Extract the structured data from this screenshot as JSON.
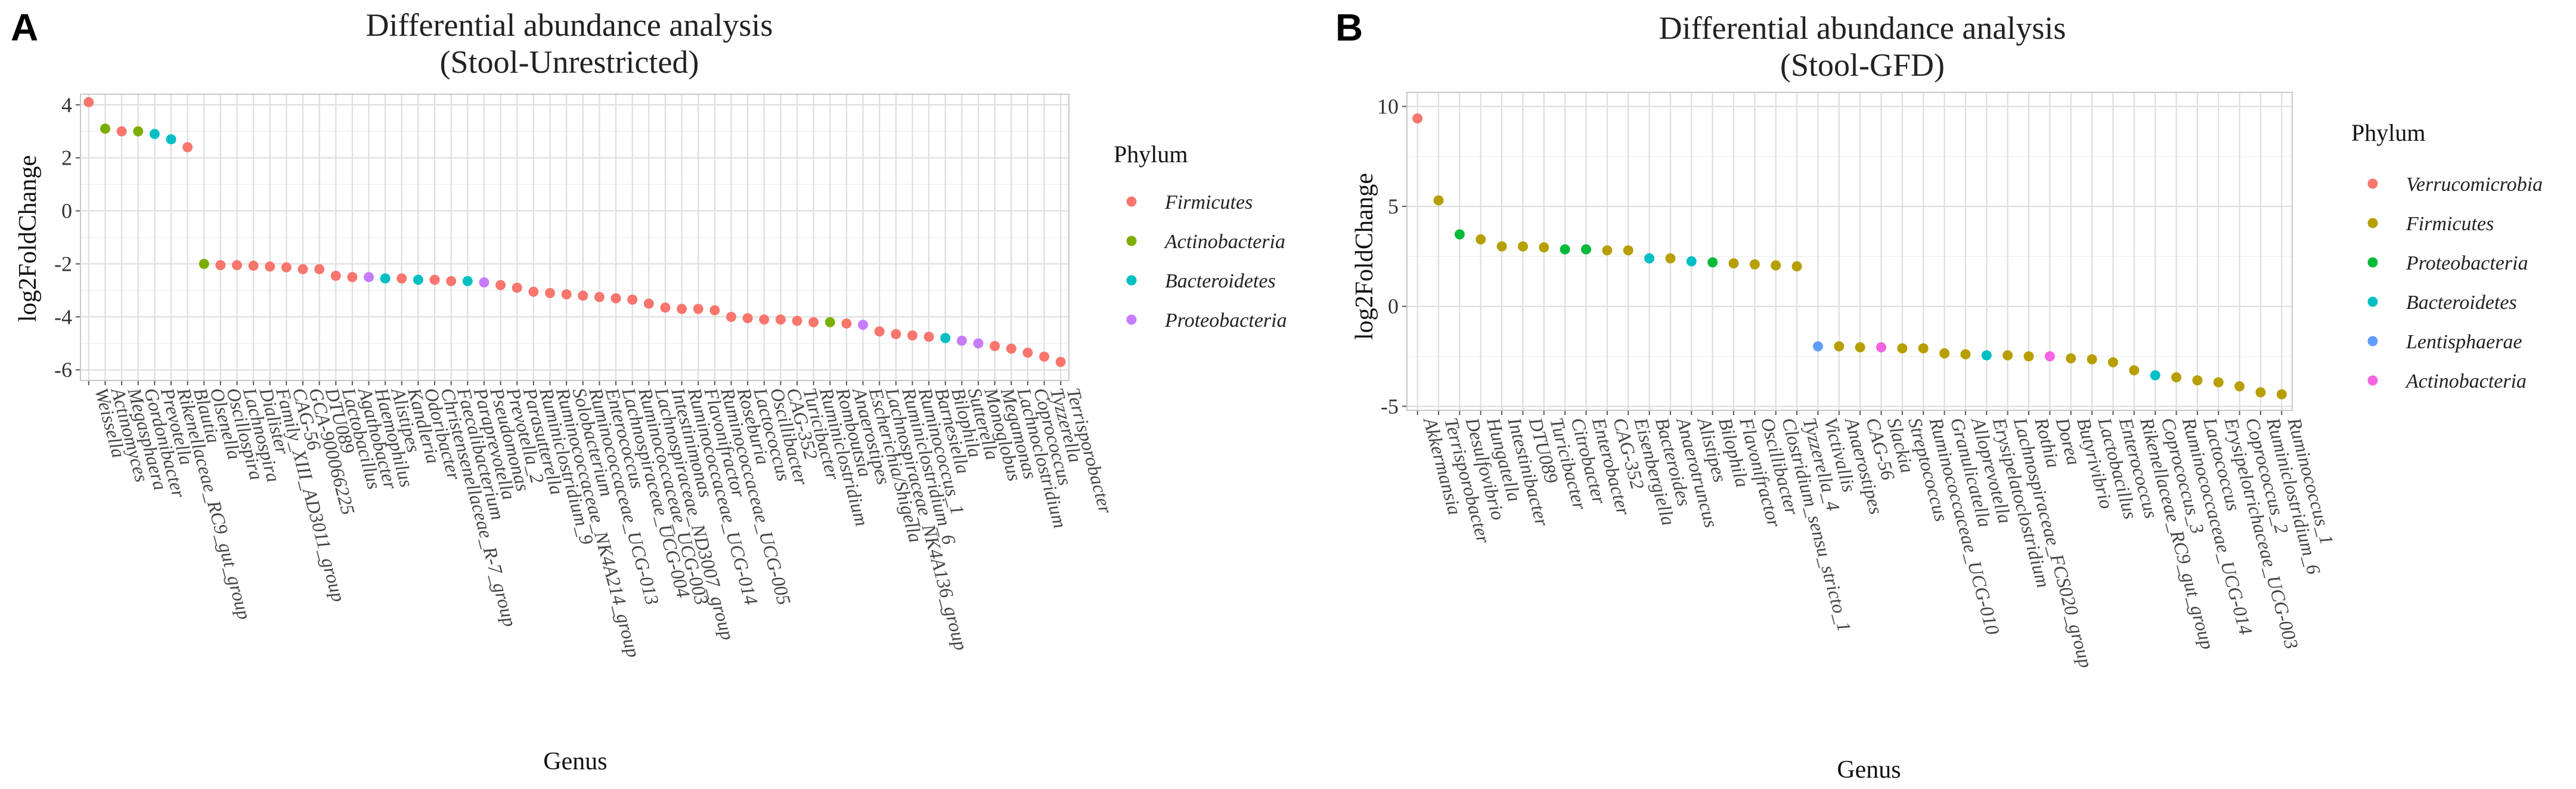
{
  "panels": [
    {
      "letter": "A",
      "title_line1": "Differential abundance analysis",
      "title_line2": "(Stool-Unrestricted)",
      "xlabel": "Genus",
      "ylabel": "log2FoldChange",
      "legend_title": "Phylum",
      "legend": [
        {
          "name": "Firmicutes",
          "color": "#F8766D"
        },
        {
          "name": "Actinobacteria",
          "color": "#7CAE00"
        },
        {
          "name": "Bacteroidetes",
          "color": "#00BFC4"
        },
        {
          "name": "Proteobacteria",
          "color": "#C77CFF"
        }
      ],
      "chart_data": {
        "type": "scatter",
        "ylim": [
          -6.4,
          4.4
        ],
        "yticks": [
          -6,
          -4,
          -2,
          0,
          2,
          4
        ],
        "points": [
          {
            "genus": "Weissella",
            "value": 4.1,
            "phylum": "Firmicutes"
          },
          {
            "genus": "Actinomyces",
            "value": 3.1,
            "phylum": "Actinobacteria"
          },
          {
            "genus": "Megasphaera",
            "value": 3.0,
            "phylum": "Firmicutes"
          },
          {
            "genus": "Gordonibacter",
            "value": 3.0,
            "phylum": "Actinobacteria"
          },
          {
            "genus": "Prevotella",
            "value": 2.9,
            "phylum": "Bacteroidetes"
          },
          {
            "genus": "Rikenellaceae_RC9_gut_group",
            "value": 2.7,
            "phylum": "Bacteroidetes"
          },
          {
            "genus": "Blautia",
            "value": 2.4,
            "phylum": "Firmicutes"
          },
          {
            "genus": "Olsenella",
            "value": -2.0,
            "phylum": "Actinobacteria"
          },
          {
            "genus": "Oscillospira",
            "value": -2.05,
            "phylum": "Firmicutes"
          },
          {
            "genus": "Lachnospira",
            "value": -2.05,
            "phylum": "Firmicutes"
          },
          {
            "genus": "Dialister",
            "value": -2.07,
            "phylum": "Firmicutes"
          },
          {
            "genus": "Family_XIII_AD3011_group",
            "value": -2.1,
            "phylum": "Firmicutes"
          },
          {
            "genus": "CAG-56",
            "value": -2.13,
            "phylum": "Firmicutes"
          },
          {
            "genus": "GCA-900066225",
            "value": -2.2,
            "phylum": "Firmicutes"
          },
          {
            "genus": "DTU089",
            "value": -2.2,
            "phylum": "Firmicutes"
          },
          {
            "genus": "Lactobacillus",
            "value": -2.45,
            "phylum": "Firmicutes"
          },
          {
            "genus": "Agathobacter",
            "value": -2.5,
            "phylum": "Firmicutes"
          },
          {
            "genus": "Haemophilus",
            "value": -2.5,
            "phylum": "Proteobacteria"
          },
          {
            "genus": "Alistipes",
            "value": -2.55,
            "phylum": "Bacteroidetes"
          },
          {
            "genus": "Kandleria",
            "value": -2.55,
            "phylum": "Firmicutes"
          },
          {
            "genus": "Odoribacter",
            "value": -2.6,
            "phylum": "Bacteroidetes"
          },
          {
            "genus": "Christensenellaceae_R-7_group",
            "value": -2.6,
            "phylum": "Firmicutes"
          },
          {
            "genus": "Faecalibacterium",
            "value": -2.65,
            "phylum": "Firmicutes"
          },
          {
            "genus": "Paraprevotella",
            "value": -2.65,
            "phylum": "Bacteroidetes"
          },
          {
            "genus": "Pseudomonas",
            "value": -2.7,
            "phylum": "Proteobacteria"
          },
          {
            "genus": "Prevotella_2",
            "value": -2.8,
            "phylum": "Firmicutes"
          },
          {
            "genus": "Parasutterella",
            "value": -2.9,
            "phylum": "Firmicutes"
          },
          {
            "genus": "Ruminiclostridium_9",
            "value": -3.05,
            "phylum": "Firmicutes"
          },
          {
            "genus": "Ruminococcaceae_NK4A214_group",
            "value": -3.1,
            "phylum": "Firmicutes"
          },
          {
            "genus": "Solobacterium",
            "value": -3.15,
            "phylum": "Firmicutes"
          },
          {
            "genus": "Ruminococcaceae_UCG-013",
            "value": -3.2,
            "phylum": "Firmicutes"
          },
          {
            "genus": "Enterococcus",
            "value": -3.25,
            "phylum": "Firmicutes"
          },
          {
            "genus": "Lachnospiraceae_UCG-004",
            "value": -3.3,
            "phylum": "Firmicutes"
          },
          {
            "genus": "Ruminococcaceae_UCG-003",
            "value": -3.35,
            "phylum": "Firmicutes"
          },
          {
            "genus": "Lachnospiraceae_ND3007_group",
            "value": -3.5,
            "phylum": "Firmicutes"
          },
          {
            "genus": "Intestinimonas",
            "value": -3.65,
            "phylum": "Firmicutes"
          },
          {
            "genus": "Ruminococcaceae_UCG-014",
            "value": -3.7,
            "phylum": "Firmicutes"
          },
          {
            "genus": "Flavonifractor",
            "value": -3.7,
            "phylum": "Firmicutes"
          },
          {
            "genus": "Ruminococcaceae_UCG-005",
            "value": -3.75,
            "phylum": "Firmicutes"
          },
          {
            "genus": "Roseburia",
            "value": -4.0,
            "phylum": "Firmicutes"
          },
          {
            "genus": "Lactococcus",
            "value": -4.05,
            "phylum": "Firmicutes"
          },
          {
            "genus": "Oscillibacter",
            "value": -4.1,
            "phylum": "Firmicutes"
          },
          {
            "genus": "CAG-352",
            "value": -4.1,
            "phylum": "Firmicutes"
          },
          {
            "genus": "Turicibacter",
            "value": -4.15,
            "phylum": "Firmicutes"
          },
          {
            "genus": "Ruminiclostridium",
            "value": -4.2,
            "phylum": "Firmicutes"
          },
          {
            "genus": "Romboutsia",
            "value": -4.2,
            "phylum": "Actinobacteria"
          },
          {
            "genus": "Anaerostipes",
            "value": -4.25,
            "phylum": "Firmicutes"
          },
          {
            "genus": "Escherichia/Shigella",
            "value": -4.3,
            "phylum": "Proteobacteria"
          },
          {
            "genus": "Lachnospiraceae_NK4A136_group",
            "value": -4.55,
            "phylum": "Firmicutes"
          },
          {
            "genus": "Ruminiclostridium_6",
            "value": -4.65,
            "phylum": "Firmicutes"
          },
          {
            "genus": "Ruminococcus_1",
            "value": -4.7,
            "phylum": "Firmicutes"
          },
          {
            "genus": "Barnesiella",
            "value": -4.75,
            "phylum": "Firmicutes"
          },
          {
            "genus": "Bilophila",
            "value": -4.8,
            "phylum": "Bacteroidetes"
          },
          {
            "genus": "Sutterella",
            "value": -4.9,
            "phylum": "Proteobacteria"
          },
          {
            "genus": "Monoglobus",
            "value": -5.0,
            "phylum": "Proteobacteria"
          },
          {
            "genus": "Megamonas",
            "value": -5.1,
            "phylum": "Firmicutes"
          },
          {
            "genus": "Lachnoclostridium",
            "value": -5.2,
            "phylum": "Firmicutes"
          },
          {
            "genus": "Coprococcus",
            "value": -5.35,
            "phylum": "Firmicutes"
          },
          {
            "genus": "Tyzzerella",
            "value": -5.5,
            "phylum": "Firmicutes"
          },
          {
            "genus": "Terrisporobacter",
            "value": -5.7,
            "phylum": "Firmicutes"
          }
        ],
        "axis_labels": [
          "Weissella",
          "Actinomyces",
          "Megasphaera",
          "Gordonibacter",
          "Prevotella",
          "Rikenellaceae_RC9_gut_group",
          "Blautia",
          "Olsenella",
          "Oscillospira",
          "Lachnospira",
          "Dialister",
          "Family_XIII_AD3011_group",
          "CAG-56",
          "GCA-900066225",
          "DTU089",
          "Lactobacillus",
          "Agathobacter",
          "Haemophilus",
          "Alistipes",
          "Kandleria",
          "Odoribacter",
          "Christensenellaceae_R-7_group",
          "Faecalibacterium",
          "Paraprevotella",
          "Pseudomonas",
          "Prevotella_2",
          "Parasutterella",
          "Ruminiclostridium_9",
          "Ruminococcaceae_NK4A214_group",
          "Solobacterium",
          "Ruminococcaceae_UCG-013",
          "Enterococcus",
          "Lachnospiraceae_UCG-004",
          "Ruminococcaceae_UCG-003",
          "Lachnospiraceae_ND3007_group",
          "Intestinimonas",
          "Ruminococcaceae_UCG-014",
          "Flavonifractor",
          "Ruminococcaceae_UCG-005",
          "Roseburia",
          "Lactococcus",
          "Oscillibacter",
          "CAG-352",
          "Turicibacter",
          "Ruminiclostridium",
          "Romboutsia",
          "Anaerostipes",
          "Escherichia/Shigella",
          "Lachnospiraceae_NK4A136_group",
          "Ruminiclostridium_6",
          "Ruminococcus_1",
          "Barnesiella",
          "Bilophila",
          "Sutterella",
          "Monoglobus",
          "Megamonas",
          "Lachnoclostridium",
          "Coprococcus",
          "Tyzzerella",
          "Terrisporobacter"
        ]
      }
    },
    {
      "letter": "B",
      "title_line1": "Differential abundance analysis",
      "title_line2": "(Stool-GFD)",
      "xlabel": "Genus",
      "ylabel": "log2FoldChange",
      "legend_title": "Phylum",
      "legend": [
        {
          "name": "Verrucomicrobia",
          "color": "#F8766D"
        },
        {
          "name": "Firmicutes",
          "color": "#B79F00"
        },
        {
          "name": "Proteobacteria",
          "color": "#00BA38"
        },
        {
          "name": "Bacteroidetes",
          "color": "#00BFC4"
        },
        {
          "name": "Lentisphaerae",
          "color": "#619CFF"
        },
        {
          "name": "Actinobacteria",
          "color": "#F564E3"
        }
      ],
      "chart_data": {
        "type": "scatter",
        "ylim": [
          -5.2,
          10.7
        ],
        "yticks": [
          -5,
          0,
          5,
          10
        ],
        "points": [
          {
            "genus": "Akkermansia",
            "value": 9.4,
            "phylum": "Verrucomicrobia"
          },
          {
            "genus": "Terrisporobacter",
            "value": 5.3,
            "phylum": "Firmicutes"
          },
          {
            "genus": "Desulfovibrio",
            "value": 3.6,
            "phylum": "Proteobacteria"
          },
          {
            "genus": "Hungatella",
            "value": 3.35,
            "phylum": "Firmicutes"
          },
          {
            "genus": "Intestinibacter",
            "value": 3.0,
            "phylum": "Firmicutes"
          },
          {
            "genus": "DTU089",
            "value": 3.0,
            "phylum": "Firmicutes"
          },
          {
            "genus": "Turicibacter",
            "value": 2.95,
            "phylum": "Firmicutes"
          },
          {
            "genus": "Citrobacter",
            "value": 2.85,
            "phylum": "Proteobacteria"
          },
          {
            "genus": "Enterobacter",
            "value": 2.85,
            "phylum": "Proteobacteria"
          },
          {
            "genus": "CAG-352",
            "value": 2.8,
            "phylum": "Firmicutes"
          },
          {
            "genus": "Eisenbergiella",
            "value": 2.8,
            "phylum": "Firmicutes"
          },
          {
            "genus": "Bacteroides",
            "value": 2.4,
            "phylum": "Bacteroidetes"
          },
          {
            "genus": "Anaerotruncus",
            "value": 2.4,
            "phylum": "Firmicutes"
          },
          {
            "genus": "Alistipes",
            "value": 2.25,
            "phylum": "Bacteroidetes"
          },
          {
            "genus": "Bilophila",
            "value": 2.2,
            "phylum": "Proteobacteria"
          },
          {
            "genus": "Flavonifractor",
            "value": 2.15,
            "phylum": "Firmicutes"
          },
          {
            "genus": "Oscillibacter",
            "value": 2.1,
            "phylum": "Firmicutes"
          },
          {
            "genus": "Clostridium_sensu_stricto_1",
            "value": 2.05,
            "phylum": "Firmicutes"
          },
          {
            "genus": "Tyzzerella_4",
            "value": 2.0,
            "phylum": "Firmicutes"
          },
          {
            "genus": "Victivallis",
            "value": -2.0,
            "phylum": "Lentisphaerae"
          },
          {
            "genus": "Anaerostipes",
            "value": -2.0,
            "phylum": "Firmicutes"
          },
          {
            "genus": "CAG-56",
            "value": -2.05,
            "phylum": "Firmicutes"
          },
          {
            "genus": "Slackia",
            "value": -2.05,
            "phylum": "Actinobacteria"
          },
          {
            "genus": "Streptococcus",
            "value": -2.1,
            "phylum": "Firmicutes"
          },
          {
            "genus": "Ruminococcaceae_UCG-010",
            "value": -2.1,
            "phylum": "Firmicutes"
          },
          {
            "genus": "Granulicatella",
            "value": -2.35,
            "phylum": "Firmicutes"
          },
          {
            "genus": "Alloprevotella",
            "value": -2.4,
            "phylum": "Firmicutes"
          },
          {
            "genus": "Erysipelatoclostridium",
            "value": -2.45,
            "phylum": "Bacteroidetes"
          },
          {
            "genus": "Lachnospiraceae_FCS020_group",
            "value": -2.45,
            "phylum": "Firmicutes"
          },
          {
            "genus": "Rothia",
            "value": -2.5,
            "phylum": "Firmicutes"
          },
          {
            "genus": "Dorea",
            "value": -2.5,
            "phylum": "Actinobacteria"
          },
          {
            "genus": "Butyrivibrio",
            "value": -2.6,
            "phylum": "Firmicutes"
          },
          {
            "genus": "Lactobacillus",
            "value": -2.65,
            "phylum": "Firmicutes"
          },
          {
            "genus": "Enterococcus",
            "value": -2.8,
            "phylum": "Firmicutes"
          },
          {
            "genus": "Rikenellaceae_RC9_gut_group",
            "value": -3.2,
            "phylum": "Firmicutes"
          },
          {
            "genus": "Coprococcus_3",
            "value": -3.45,
            "phylum": "Bacteroidetes"
          },
          {
            "genus": "Ruminococcaceae_UCG-014",
            "value": -3.55,
            "phylum": "Firmicutes"
          },
          {
            "genus": "Lactococcus",
            "value": -3.7,
            "phylum": "Firmicutes"
          },
          {
            "genus": "Erysipelotrichaceae_UCG-003",
            "value": -3.8,
            "phylum": "Firmicutes"
          },
          {
            "genus": "Coprococcus_2",
            "value": -4.0,
            "phylum": "Firmicutes"
          },
          {
            "genus": "Ruminiclostridium_6",
            "value": -4.3,
            "phylum": "Firmicutes"
          },
          {
            "genus": "Ruminococcus_1",
            "value": -4.4,
            "phylum": "Firmicutes"
          }
        ],
        "axis_labels": [
          "Akkermansia",
          "Terrisporobacter",
          "Desulfovibrio",
          "Hungatella",
          "Intestinibacter",
          "DTU089",
          "Turicibacter",
          "Citrobacter",
          "Enterobacter",
          "CAG-352",
          "Eisenbergiella",
          "Bacteroides",
          "Anaerotruncus",
          "Alistipes",
          "Bilophila",
          "Flavonifractor",
          "Oscillibacter",
          "Clostridium_sensu_stricto_1",
          "Tyzzerella_4",
          "Victivallis",
          "Anaerostipes",
          "CAG-56",
          "Slackia",
          "Streptococcus",
          "Ruminococcaceae_UCG-010",
          "Granulicatella",
          "Alloprevotella",
          "Erysipelatoclostridium",
          "Lachnospiraceae_FCS020_group",
          "Rothia",
          "Dorea",
          "Butyrivibrio",
          "Lactobacillus",
          "Enterococcus",
          "Rikenellaceae_RC9_gut_group",
          "Coprococcus_3",
          "Ruminococcaceae_UCG-014",
          "Lactococcus",
          "Erysipelotrichaceae_UCG-003",
          "Coprococcus_2",
          "Ruminiclostridium_6",
          "Ruminococcus_1"
        ]
      }
    }
  ]
}
